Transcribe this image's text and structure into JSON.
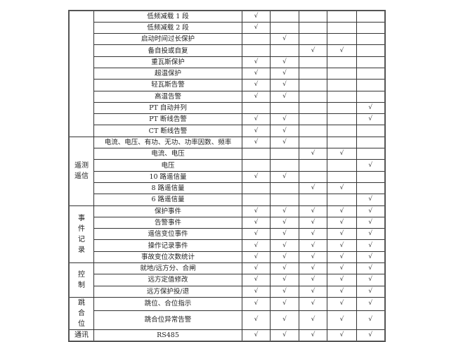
{
  "check_mark": "√",
  "groups": [
    {
      "label": "",
      "rows": 11
    },
    {
      "label": "遥测遥信",
      "rows": 6
    },
    {
      "label": "事件记录",
      "rows": 5
    },
    {
      "label": "控制",
      "rows": 3
    },
    {
      "label": "跳合位",
      "rows": 2
    },
    {
      "label": "通讯",
      "rows": 1
    }
  ],
  "rows": [
    {
      "item": "低频减载 1 段",
      "checks": [
        1,
        0,
        0,
        0,
        0
      ]
    },
    {
      "item": "低频减载 2 段",
      "checks": [
        1,
        0,
        0,
        0,
        0
      ]
    },
    {
      "item": "启动时间过长保护",
      "checks": [
        0,
        1,
        0,
        0,
        0
      ]
    },
    {
      "item": "备自投或自复",
      "checks": [
        0,
        0,
        1,
        1,
        0
      ]
    },
    {
      "item": "重瓦斯保护",
      "checks": [
        1,
        1,
        0,
        0,
        0
      ]
    },
    {
      "item": "超温保护",
      "checks": [
        1,
        1,
        0,
        0,
        0
      ]
    },
    {
      "item": "轻瓦斯告警",
      "checks": [
        1,
        1,
        0,
        0,
        0
      ]
    },
    {
      "item": "高温告警",
      "checks": [
        1,
        1,
        0,
        0,
        0
      ]
    },
    {
      "item": "PT 自动并列",
      "checks": [
        0,
        0,
        0,
        0,
        1
      ]
    },
    {
      "item": "PT 断线告警",
      "checks": [
        1,
        1,
        0,
        0,
        1
      ]
    },
    {
      "item": "CT 断线告警",
      "checks": [
        1,
        1,
        0,
        0,
        0
      ]
    },
    {
      "item": "电流、电压、有功、无功、功率因数、频率",
      "checks": [
        1,
        1,
        0,
        0,
        0
      ]
    },
    {
      "item": "电流、电压",
      "checks": [
        0,
        0,
        1,
        1,
        0
      ]
    },
    {
      "item": "电压",
      "checks": [
        0,
        0,
        0,
        0,
        1
      ]
    },
    {
      "item": "10 路遥信量",
      "checks": [
        1,
        1,
        0,
        0,
        0
      ]
    },
    {
      "item": "8 路遥信量",
      "checks": [
        0,
        0,
        1,
        1,
        0
      ]
    },
    {
      "item": "6 路遥信量",
      "checks": [
        0,
        0,
        0,
        0,
        1
      ]
    },
    {
      "item": "保护事件",
      "checks": [
        1,
        1,
        1,
        1,
        1
      ]
    },
    {
      "item": "告警事件",
      "checks": [
        1,
        1,
        1,
        1,
        1
      ]
    },
    {
      "item": "遥信变位事件",
      "checks": [
        1,
        1,
        1,
        1,
        1
      ]
    },
    {
      "item": "操作记录事件",
      "checks": [
        1,
        1,
        1,
        1,
        1
      ]
    },
    {
      "item": "事故变位次数统计",
      "checks": [
        1,
        1,
        1,
        1,
        1
      ]
    },
    {
      "item": "就地/远方分、合闸",
      "checks": [
        1,
        1,
        1,
        1,
        1
      ]
    },
    {
      "item": "远方定值修改",
      "checks": [
        1,
        1,
        1,
        1,
        1
      ]
    },
    {
      "item": "远方保护投/退",
      "checks": [
        1,
        1,
        1,
        1,
        1
      ]
    },
    {
      "item": "跳位、合位指示",
      "checks": [
        1,
        1,
        1,
        1,
        1
      ]
    },
    {
      "item": "跳合位异常告警",
      "checks": [
        1,
        1,
        1,
        1,
        1
      ]
    },
    {
      "item": "RS485",
      "checks": [
        1,
        1,
        1,
        1,
        1
      ]
    }
  ]
}
